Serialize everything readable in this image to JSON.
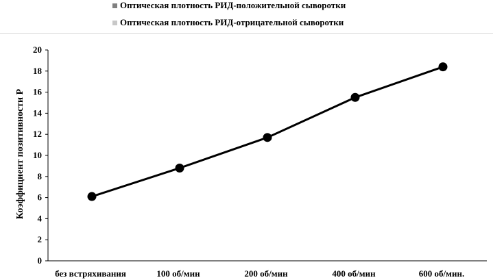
{
  "legend": {
    "items": [
      {
        "label": "Оптическая плотность РИД-положительной сыворотки",
        "color": "#808080"
      },
      {
        "label": "Оптическая плотность РИД-отрицательной сыворотки",
        "color": "#c8c8c8"
      }
    ]
  },
  "chart_data": {
    "type": "line",
    "title": "",
    "xlabel": "",
    "ylabel": "Коэффициент позитивности Р",
    "categories": [
      "без встряхивания",
      "100 об/мин",
      "200 об/мин",
      "400 об/мин",
      "600 об/мин."
    ],
    "series": [
      {
        "values": [
          6.1,
          8.8,
          11.7,
          15.5,
          18.4
        ],
        "color": "#000000"
      }
    ],
    "ylim": [
      0,
      20
    ],
    "yticks": [
      0,
      2,
      4,
      6,
      8,
      10,
      12,
      14,
      16,
      18,
      20
    ],
    "grid": false,
    "legend_position": "top"
  }
}
